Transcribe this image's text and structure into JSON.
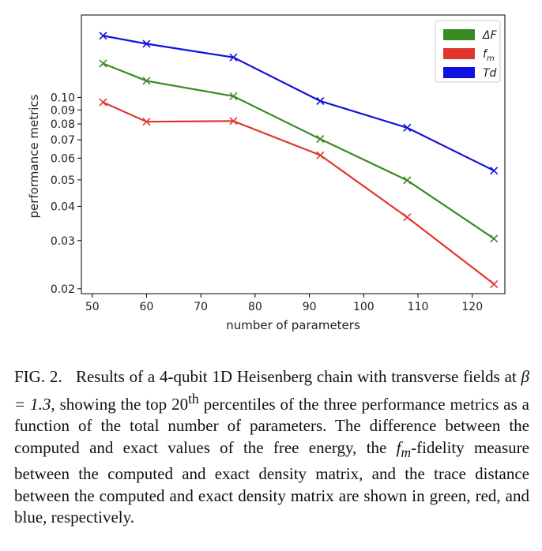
{
  "chart_data": {
    "type": "line",
    "xlabel": "number of parameters",
    "ylabel": "performance metrics",
    "xlim": [
      48,
      126
    ],
    "ylim": [
      0.0192,
      0.2
    ],
    "yscale": "log",
    "xticks": [
      50,
      60,
      70,
      80,
      90,
      100,
      110,
      120
    ],
    "yticks": [
      0.02,
      0.03,
      0.04,
      0.05,
      0.06,
      0.07,
      0.08,
      0.09,
      0.1
    ],
    "ytick_labels": [
      "0.02",
      "0.03",
      "0.04",
      "0.05",
      "0.06",
      "0.07",
      "0.08",
      "0.09",
      "0.10"
    ],
    "legend_position": "top-right",
    "marker": "x",
    "series": [
      {
        "name": "ΔF",
        "color": "#3a8a24",
        "x": [
          52,
          60,
          76,
          92,
          108,
          124
        ],
        "values": [
          0.133,
          0.115,
          0.101,
          0.0705,
          0.0498,
          0.0305
        ]
      },
      {
        "name": "f_m",
        "color": "#e0362c",
        "x": [
          52,
          60,
          76,
          92,
          108,
          124
        ],
        "values": [
          0.096,
          0.0815,
          0.082,
          0.0615,
          0.0365,
          0.0208
        ]
      },
      {
        "name": "Td",
        "color": "#1010e0",
        "x": [
          52,
          60,
          76,
          92,
          108,
          124
        ],
        "values": [
          0.168,
          0.157,
          0.14,
          0.097,
          0.0775,
          0.054
        ]
      }
    ]
  },
  "caption": {
    "fig_label": "FIG. 2.",
    "text_1": "Results of a 4-qubit 1D Heisenberg chain with transverse fields at ",
    "beta_expr": "β = 1.3",
    "text_2": ", showing the top ",
    "percentile_num": "20",
    "percentile_sup": "th",
    "text_3": " percentiles of the three performance metrics as a function of the total number of parameters. The difference between the computed and exact values of the free energy, the ",
    "fm_base": "f",
    "fm_sub": "m",
    "text_4": "-fidelity measure between the computed and exact density matrix, and the trace distance between the computed and exact density matrix are shown in green, red, and blue, respectively."
  }
}
